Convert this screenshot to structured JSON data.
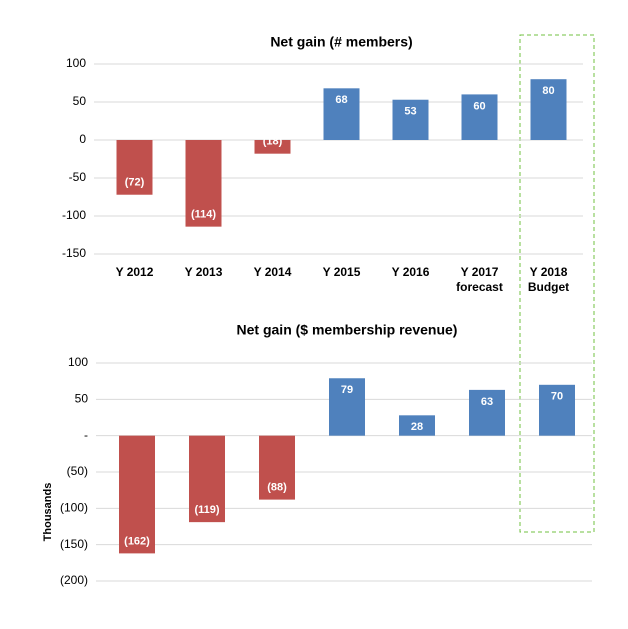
{
  "chart_data": [
    {
      "type": "bar",
      "title": "Net gain (# members)",
      "categories": [
        [
          "Y 2012"
        ],
        [
          "Y 2013"
        ],
        [
          "Y 2014"
        ],
        [
          "Y 2015"
        ],
        [
          "Y 2016"
        ],
        [
          "Y 2017",
          "forecast"
        ],
        [
          "Y 2018",
          "Budget"
        ]
      ],
      "values": [
        -72,
        -114,
        -18,
        68,
        53,
        60,
        80
      ],
      "value_labels": [
        "(72)",
        "(114)",
        "(18)",
        "68",
        "53",
        "60",
        "80"
      ],
      "colors": [
        "#c0504d",
        "#c0504d",
        "#c0504d",
        "#4f81bd",
        "#4f81bd",
        "#4f81bd",
        "#4f81bd"
      ],
      "ylim": [
        -150,
        100
      ],
      "yticks": [
        -150,
        -100,
        -50,
        0,
        50,
        100
      ],
      "grid": true
    },
    {
      "type": "bar",
      "title": "Net gain ($ membership revenue)",
      "ylabel": "Thousands",
      "values": [
        -162,
        -119,
        -88,
        79,
        28,
        63,
        70
      ],
      "value_labels": [
        "(162)",
        "(119)",
        "(88)",
        "79",
        "28",
        "63",
        "70"
      ],
      "colors": [
        "#c0504d",
        "#c0504d",
        "#c0504d",
        "#4f81bd",
        "#4f81bd",
        "#4f81bd",
        "#4f81bd"
      ],
      "ylim": [
        -200,
        100
      ],
      "yticks": [
        {
          "value": -200,
          "label": "(200)"
        },
        {
          "value": -150,
          "label": "(150)"
        },
        {
          "value": -100,
          "label": "(100)"
        },
        {
          "value": -50,
          "label": "(50)"
        },
        {
          "value": 0,
          "label": "-"
        },
        50,
        100
      ],
      "grid": true
    }
  ]
}
